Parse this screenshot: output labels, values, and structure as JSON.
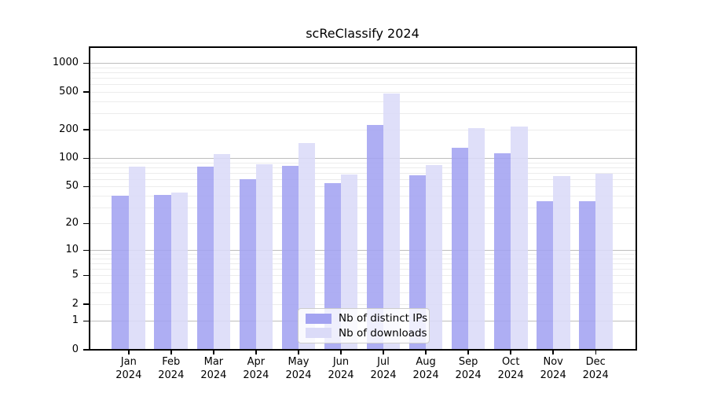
{
  "chart_data": {
    "type": "bar",
    "title": "scReClassify 2024",
    "categories": [
      "Jan 2024",
      "Feb 2024",
      "Mar 2024",
      "Apr 2024",
      "May 2024",
      "Jun 2024",
      "Jul 2024",
      "Aug 2024",
      "Sep 2024",
      "Oct 2024",
      "Nov 2024",
      "Dec 2024"
    ],
    "series": [
      {
        "name": "Nb of distinct IPs",
        "color": "#a3a3f1",
        "values": [
          40,
          41,
          82,
          60,
          83,
          54,
          225,
          66,
          128,
          112,
          35,
          35
        ]
      },
      {
        "name": "Nb of downloads",
        "color": "#dbdbf8",
        "values": [
          82,
          43,
          110,
          87,
          146,
          67,
          478,
          85,
          207,
          215,
          65,
          68
        ]
      }
    ],
    "y_axis": {
      "scale": "log10(value+1)",
      "tick_labels": [
        0,
        1,
        2,
        5,
        10,
        20,
        50,
        100,
        200,
        500,
        1000
      ],
      "minor_gridlines": [
        2,
        3,
        4,
        5,
        6,
        7,
        8,
        9,
        20,
        30,
        40,
        50,
        60,
        70,
        80,
        90,
        200,
        300,
        400,
        500,
        600,
        700,
        800,
        900
      ],
      "major_gridlines": [
        1,
        10,
        100,
        1000
      ],
      "max_value": 1495,
      "grid": true
    },
    "legend": {
      "position": "bottom-center-inside",
      "entries": [
        "Nb of distinct IPs",
        "Nb of downloads"
      ]
    }
  }
}
